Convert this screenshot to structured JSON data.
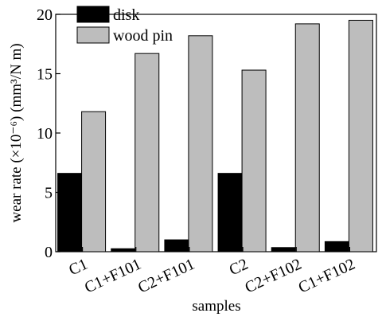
{
  "chart_data": {
    "type": "bar",
    "categories": [
      "C1",
      "C1+F101",
      "C2+F101",
      "C2",
      "C2+F102",
      "C1+F102"
    ],
    "series": [
      {
        "name": "disk",
        "color": "#000000",
        "values": [
          6.6,
          0.25,
          1.0,
          6.6,
          0.35,
          0.85
        ]
      },
      {
        "name": "wood pin",
        "color": "#bdbdbd",
        "values": [
          11.8,
          16.7,
          18.2,
          15.3,
          19.2,
          19.5
        ]
      }
    ],
    "title": "",
    "xlabel": "samples",
    "ylabel": "wear rate (×10⁻⁶) (mm³/N m)",
    "ylim": [
      0,
      20
    ],
    "yticks": [
      0,
      5,
      10,
      15,
      20
    ],
    "grid": false,
    "legend_position": "top-left"
  }
}
